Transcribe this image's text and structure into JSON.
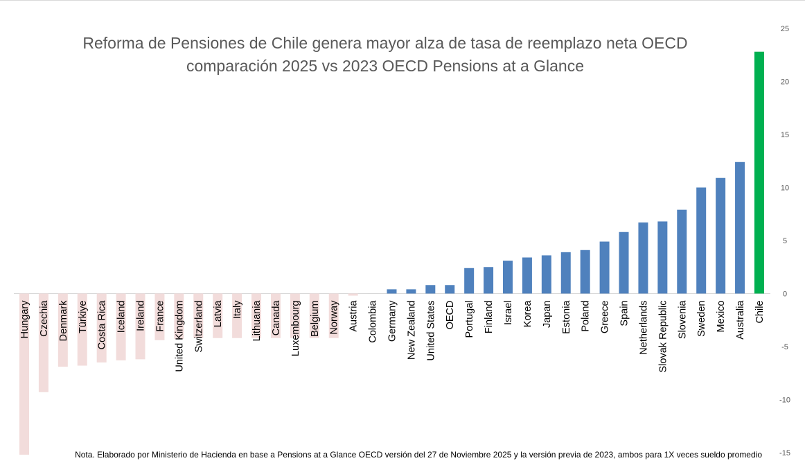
{
  "chart_data": {
    "type": "bar",
    "title": [
      "Reforma de Pensiones de Chile genera mayor alza de tasa de reemplazo neta OECD",
      "comparación 2025 vs 2023 OECD Pensions at a Glance"
    ],
    "categories": [
      "Hungary",
      "Czechia",
      "Denmark",
      "Türkiye",
      "Costa Rica",
      "Iceland",
      "Ireland",
      "France",
      "United Kingdom",
      "Switzerland",
      "Latvia",
      "Italy",
      "Lithuania",
      "Canada",
      "Luxembourg",
      "Belgium",
      "Norway",
      "Austria",
      "Colombia",
      "Germany",
      "New Zealand",
      "United States",
      "OECD",
      "Portugal",
      "Finland",
      "Israel",
      "Korea",
      "Japan",
      "Estonia",
      "Poland",
      "Greece",
      "Spain",
      "Netherlands",
      "Slovak Republic",
      "Slovenia",
      "Sweden",
      "Mexico",
      "Australia",
      "Chile"
    ],
    "values": [
      -15.2,
      -9.3,
      -6.9,
      -6.8,
      -6.5,
      -6.3,
      -6.2,
      -4.4,
      -4.3,
      -4.2,
      -4.2,
      -4.2,
      -4.2,
      -4.2,
      -4.2,
      -4.2,
      -4.2,
      -0.2,
      0.0,
      0.4,
      0.4,
      0.8,
      0.8,
      2.4,
      2.5,
      3.1,
      3.4,
      3.6,
      3.9,
      4.1,
      4.9,
      5.8,
      6.7,
      6.8,
      7.9,
      10.0,
      10.9,
      12.4,
      22.8
    ],
    "ylim": [
      -15,
      25
    ],
    "yticks": [
      -15,
      -10,
      -5,
      0,
      5,
      10,
      15,
      20,
      25
    ],
    "y_axis_side": "right",
    "colors": {
      "negative": "#f2dcdb",
      "positive": "#4f81bd",
      "highlight": "#00b050",
      "highlight_category": "Chile"
    },
    "grid": false,
    "legend": "none"
  },
  "footnote": "Nota. Elaborado por Ministerio de Hacienda en base a Pensions at a Glance OECD versión del 27 de Noviembre 2025 y la versión previa de 2023, ambos para 1X veces sueldo promedio"
}
